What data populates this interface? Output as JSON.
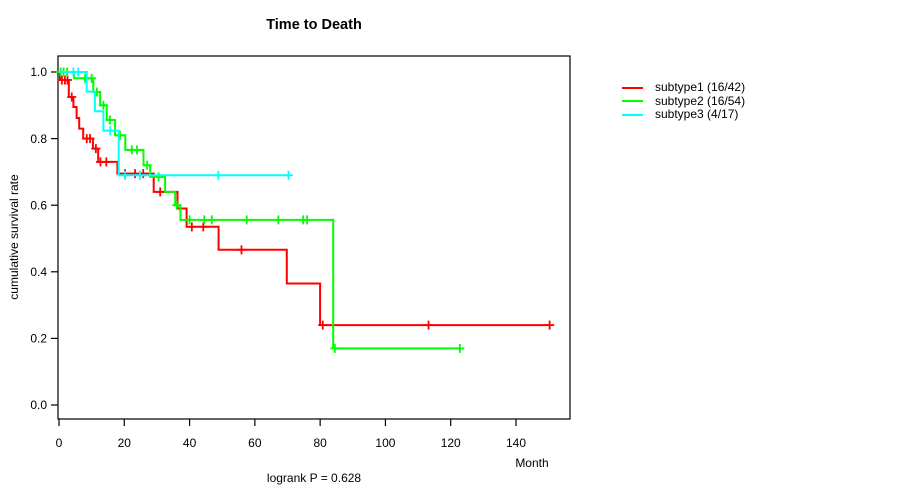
{
  "figure": {
    "title": "Time to Death",
    "ylabel": "cumulative survival rate",
    "xlabel": "Month",
    "footer": "logrank P = 0.628"
  },
  "chart_data": {
    "type": "line",
    "subtype": "kaplan-meier-step-curves",
    "title": "Time to Death",
    "xlabel": "Month",
    "ylabel": "cumulative survival rate",
    "annotation": "logrank P = 0.628",
    "x_ticks": [
      "0",
      "20",
      "40",
      "60",
      "80",
      "100",
      "120",
      "140"
    ],
    "y_ticks": [
      "0.0",
      "0.2",
      "0.4",
      "0.6",
      "0.8",
      "1.0"
    ],
    "xlim": [
      0,
      157
    ],
    "ylim": [
      -0.04,
      1.04
    ],
    "grid": false,
    "legend_position": "right-outside",
    "axis_color": "#000000",
    "series": [
      {
        "id": "subtype1",
        "name": "subtype1 (16/42)",
        "color": "#FF0000",
        "events": "16/42",
        "steps": [
          [
            0,
            1.0
          ],
          [
            0.3,
            0.976
          ],
          [
            3.0,
            0.925
          ],
          [
            4.4,
            0.895
          ],
          [
            5.4,
            0.862
          ],
          [
            6.2,
            0.83
          ],
          [
            7.4,
            0.8
          ],
          [
            10.4,
            0.77
          ],
          [
            12.0,
            0.73
          ],
          [
            17.9,
            0.695
          ],
          [
            29.0,
            0.64
          ],
          [
            36.3,
            0.59
          ],
          [
            39.1,
            0.535
          ],
          [
            48.9,
            0.466
          ],
          [
            69.8,
            0.365
          ],
          [
            80.0,
            0.24
          ]
        ],
        "end_time": 150.3,
        "censors": [
          [
            0.9,
            0.976
          ],
          [
            1.8,
            0.976
          ],
          [
            2.6,
            0.976
          ],
          [
            3.9,
            0.925
          ],
          [
            8.5,
            0.8
          ],
          [
            9.5,
            0.8
          ],
          [
            11.3,
            0.77
          ],
          [
            12.7,
            0.73
          ],
          [
            14.5,
            0.73
          ],
          [
            20.2,
            0.695
          ],
          [
            23.3,
            0.695
          ],
          [
            25.8,
            0.695
          ],
          [
            31.0,
            0.64
          ],
          [
            40.7,
            0.535
          ],
          [
            44.2,
            0.535
          ],
          [
            55.9,
            0.466
          ],
          [
            80.8,
            0.24
          ],
          [
            113.2,
            0.24
          ],
          [
            150.3,
            0.24
          ]
        ]
      },
      {
        "id": "subtype2",
        "name": "subtype2 (16/54)",
        "color": "#00FF00",
        "events": "16/54",
        "steps": [
          [
            0,
            1.0
          ],
          [
            4.6,
            0.981
          ],
          [
            10.5,
            0.94
          ],
          [
            12.6,
            0.9
          ],
          [
            14.6,
            0.856
          ],
          [
            17.2,
            0.81
          ],
          [
            20.3,
            0.766
          ],
          [
            25.9,
            0.72
          ],
          [
            27.9,
            0.685
          ],
          [
            32.5,
            0.64
          ],
          [
            35.6,
            0.6
          ],
          [
            37.2,
            0.556
          ],
          [
            84.0,
            0.17
          ]
        ],
        "end_time": 122.8,
        "censors": [
          [
            0.5,
            1.0
          ],
          [
            1.4,
            1.0
          ],
          [
            2.5,
            1.0
          ],
          [
            8.0,
            0.981
          ],
          [
            10.0,
            0.981
          ],
          [
            11.6,
            0.94
          ],
          [
            13.6,
            0.9
          ],
          [
            15.6,
            0.856
          ],
          [
            18.7,
            0.81
          ],
          [
            22.3,
            0.766
          ],
          [
            23.9,
            0.766
          ],
          [
            27.0,
            0.72
          ],
          [
            30.5,
            0.685
          ],
          [
            36.1,
            0.6
          ],
          [
            40.0,
            0.556
          ],
          [
            44.5,
            0.556
          ],
          [
            46.8,
            0.556
          ],
          [
            57.5,
            0.556
          ],
          [
            67.2,
            0.556
          ],
          [
            74.8,
            0.556
          ],
          [
            76.0,
            0.556
          ],
          [
            84.5,
            0.17
          ],
          [
            122.8,
            0.17
          ]
        ]
      },
      {
        "id": "subtype3",
        "name": "subtype3 (4/17)",
        "color": "#00FFFF",
        "events": "4/17",
        "steps": [
          [
            0,
            1.0
          ],
          [
            8.5,
            0.941
          ],
          [
            11.0,
            0.882
          ],
          [
            13.6,
            0.824
          ],
          [
            18.3,
            0.69
          ]
        ],
        "end_time": 70.3,
        "censors": [
          [
            4.4,
            1.0
          ],
          [
            5.9,
            1.0
          ],
          [
            15.7,
            0.824
          ],
          [
            20.2,
            0.69
          ],
          [
            24.8,
            0.69
          ],
          [
            48.8,
            0.69
          ],
          [
            70.3,
            0.69
          ]
        ]
      }
    ]
  }
}
